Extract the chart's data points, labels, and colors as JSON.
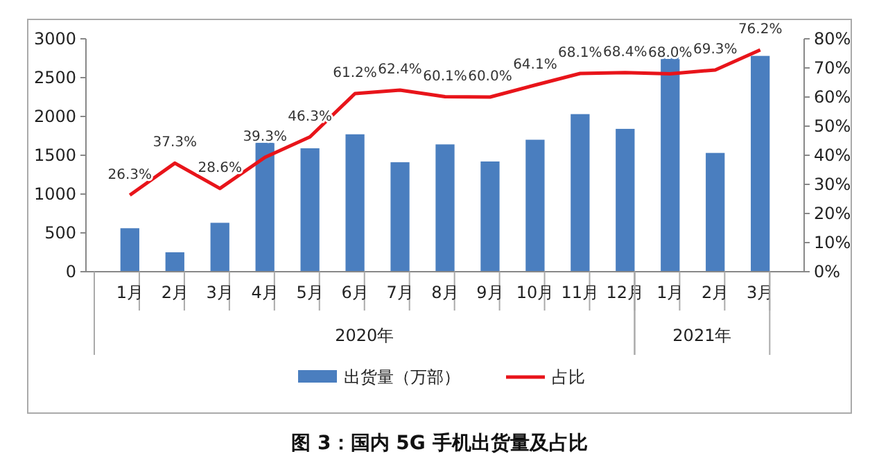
{
  "chart_data": {
    "type": "bar",
    "title": "图 3：国内 5G 手机出货量及占比",
    "categories": [
      "1月",
      "2月",
      "3月",
      "4月",
      "5月",
      "6月",
      "7月",
      "8月",
      "9月",
      "10月",
      "11月",
      "12月",
      "1月",
      "2月",
      "3月"
    ],
    "series": [
      {
        "name": "出货量（万部）",
        "color": "#4a7ebf",
        "values": [
          560,
          250,
          630,
          1660,
          1590,
          1770,
          1410,
          1640,
          1420,
          1700,
          2030,
          1840,
          2760,
          1530,
          2780
        ]
      },
      {
        "name": "占比",
        "type": "line",
        "axis": "y2",
        "color": "#e8141a",
        "values": [
          26.3,
          37.3,
          28.6,
          39.3,
          46.3,
          61.2,
          62.4,
          60.1,
          60.0,
          64.1,
          68.1,
          68.4,
          68.0,
          69.3,
          76.2
        ],
        "value_labels": [
          "26.3%",
          "37.3%",
          "28.6%",
          "39.3%",
          "46.3%",
          "61.2%",
          "62.4%",
          "60.1%",
          "60.0%",
          "64.1%",
          "68.1%",
          "68.4%",
          "68.0%",
          "69.3%",
          "76.2%"
        ]
      }
    ],
    "ylim": [
      0,
      3000
    ],
    "yticks": [
      0,
      500,
      1000,
      1500,
      2000,
      2500,
      3000
    ],
    "y2lim": [
      0,
      80
    ],
    "y2ticks": [
      {
        "value": 0,
        "label": "0%"
      },
      {
        "value": 10,
        "label": "10%"
      },
      {
        "value": 20,
        "label": "20%"
      },
      {
        "value": 30,
        "label": "30%"
      },
      {
        "value": 40,
        "label": "40%"
      },
      {
        "value": 50,
        "label": "50%"
      },
      {
        "value": 60,
        "label": "60%"
      },
      {
        "value": 70,
        "label": "70%"
      },
      {
        "value": 80,
        "label": "80%"
      }
    ],
    "annotations": [
      "2020年",
      "2021年"
    ],
    "legend": "bottom",
    "grid": false,
    "marker": "none",
    "line_style": "solid"
  }
}
